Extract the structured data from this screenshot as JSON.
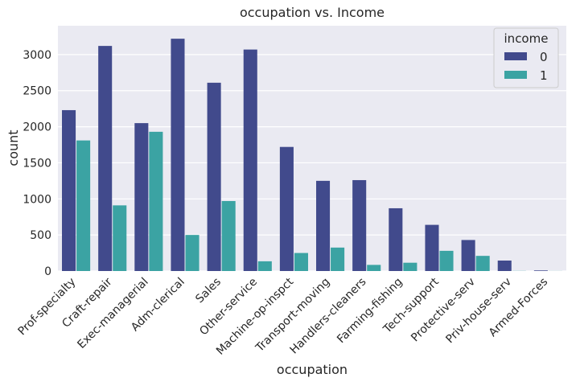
{
  "chart_data": {
    "type": "bar",
    "title": "occupation vs. Income",
    "xlabel": "occupation",
    "ylabel": "count",
    "ylim": [
      0,
      3400
    ],
    "yticks": [
      0,
      500,
      1000,
      1500,
      2000,
      2500,
      3000
    ],
    "grid": true,
    "legend_position": "top-right",
    "legend_title": "income",
    "categories": [
      "Prof-specialty",
      "Craft-repair",
      "Exec-managerial",
      "Adm-clerical",
      "Sales",
      "Other-service",
      "Machine-op-inspct",
      "Transport-moving",
      "Handlers-cleaners",
      "Farming-fishing",
      "Tech-support",
      "Protective-serv",
      "Priv-house-serv",
      "Armed-Forces"
    ],
    "series": [
      {
        "name": "0",
        "color": "#414a8c",
        "values": [
          2230,
          3120,
          2050,
          3220,
          2610,
          3070,
          1720,
          1250,
          1260,
          870,
          640,
          430,
          145,
          8
        ]
      },
      {
        "name": "1",
        "color": "#3ba3a3",
        "values": [
          1810,
          910,
          1930,
          500,
          970,
          135,
          250,
          325,
          85,
          115,
          280,
          210,
          2,
          1
        ]
      }
    ]
  }
}
